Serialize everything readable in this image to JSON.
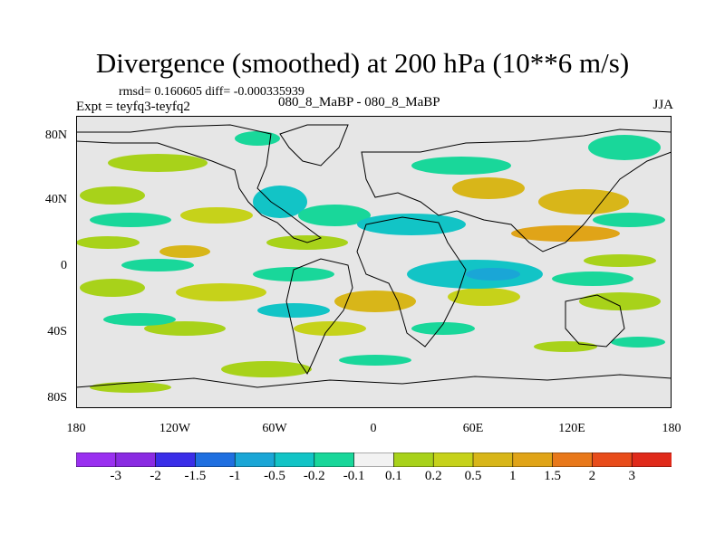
{
  "title": "Divergence (smoothed) at 200 hPa (10**6 m/s)",
  "stats": "rmsd= 0.160605 diff= -0.000335939",
  "experiment": "Expt = teyfq3-teyfq2",
  "run_label": "080_8_MaBP - 080_8_MaBP",
  "season": "JJA",
  "colors": {
    "land_outline": "#000000",
    "background": "#e6e6e6",
    "bins": [
      "#8a2be2",
      "#3a2ee8",
      "#1f6fe0",
      "#1aa6d6",
      "#12c4c6",
      "#19d79a",
      "#e6e6e6",
      "#a8d21a",
      "#c6d21a",
      "#d8b619",
      "#e0a418",
      "#e8781a",
      "#e84c1a",
      "#e02a1a"
    ]
  },
  "chart_data": {
    "type": "heatmap",
    "variable": "Divergence (smoothed) at 200 hPa",
    "units": "10**6 m/s",
    "lat_ticks": [
      "80N",
      "40N",
      "0",
      "40S",
      "80S"
    ],
    "lon_ticks": [
      "180",
      "120W",
      "60W",
      "0",
      "60E",
      "120E",
      "180"
    ],
    "levels": [
      "-3",
      "-2",
      "-1.5",
      "-1",
      "-0.5",
      "-0.2",
      "-0.1",
      "0.1",
      "0.2",
      "0.5",
      "1",
      "1.5",
      "2",
      "3"
    ],
    "xlim": [
      -180,
      180
    ],
    "ylim": [
      -90,
      90
    ]
  }
}
